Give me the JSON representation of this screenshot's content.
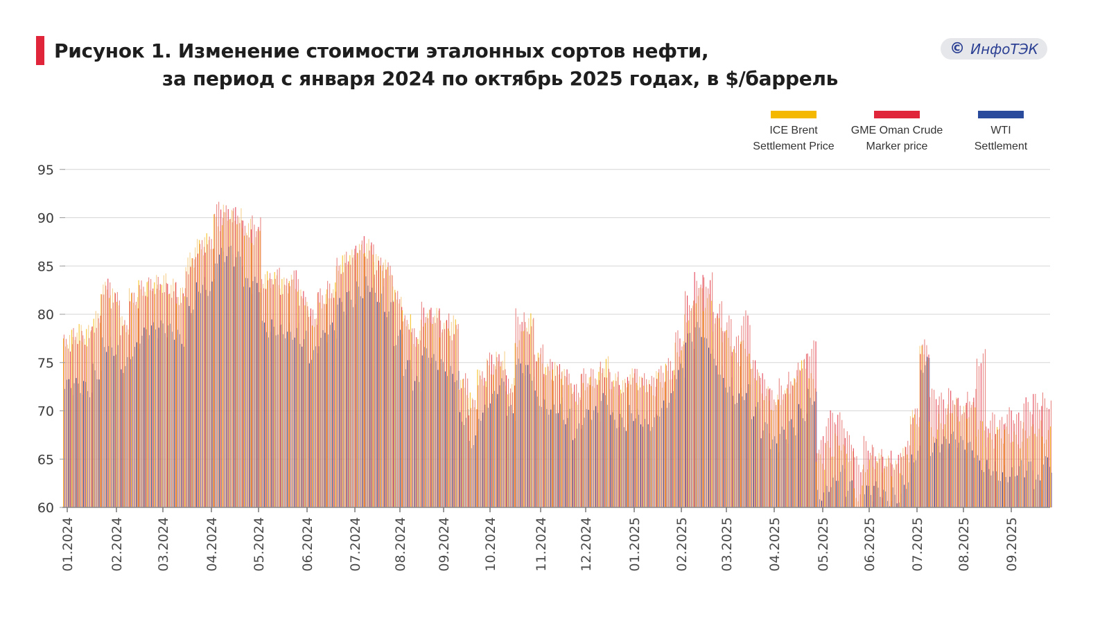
{
  "header": {
    "title_line1": "Рисунок 1. Изменение стоимости эталонных сортов нефти,",
    "title_line2": "за период с января 2024 по октябрь 2025 годах, в $/баррель",
    "badge_symbol": "©",
    "badge_text": "ИнфоТЭК",
    "accent_color": "#e0243a",
    "badge_text_color": "#2a3f93"
  },
  "chart_data": {
    "type": "bar",
    "title": "Рисунок 1. Изменение стоимости эталонных сортов нефти, за период с января 2024 по октябрь 2025 годах, в $/баррель",
    "xlabel": "",
    "ylabel": "$/баррель",
    "ylim": [
      60,
      95
    ],
    "yticks": [
      "95",
      "90",
      "85",
      "80",
      "75",
      "70",
      "65",
      "60"
    ],
    "ytick_values": [
      95,
      90,
      85,
      80,
      75,
      70,
      65,
      60
    ],
    "grid": true,
    "legend_position": "top-right",
    "xticks": [
      "01.2024",
      "02.2024",
      "03.2024",
      "04.2024",
      "05.2024",
      "06.2024",
      "07.2024",
      "08.2024",
      "09.2024",
      "10.2024",
      "11.2024",
      "12.2024",
      "01.2025",
      "02.2025",
      "03.2025",
      "04.2025",
      "05.2025",
      "06.2025",
      "07.2025",
      "08.2025",
      "09.2025"
    ],
    "series": [
      {
        "name": "ICE Brent Settlement Price",
        "legend_line1": "ICE Brent",
        "legend_line2": "Settlement Price",
        "color": "#f5b800",
        "values": [
          77.5,
          78.2,
          78.0,
          79.5,
          82.5,
          81.8,
          79.0,
          81.8,
          82.8,
          83.2,
          83.4,
          82.8,
          82.0,
          85.5,
          87.0,
          87.5,
          89.5,
          90.5,
          90.2,
          89.0,
          88.0,
          83.6,
          83.5,
          83.0,
          83.2,
          81.8,
          79.5,
          81.5,
          82.4,
          85.4,
          85.8,
          86.5,
          86.9,
          85.4,
          84.8,
          82.0,
          79.6,
          77.5,
          79.6,
          79.8,
          78.5,
          79.0,
          72.5,
          71.0,
          73.5,
          74.5,
          75.5,
          72.5,
          77.5,
          79.2,
          75.2,
          74.0,
          74.2,
          73.5,
          71.5,
          73.0,
          73.2,
          74.8,
          73.0,
          72.5,
          73.5,
          72.8,
          72.3,
          73.3,
          74.0,
          76.5,
          80.0,
          82.0,
          81.2,
          79.0,
          77.5,
          75.5,
          76.5,
          74.0,
          72.0,
          70.8,
          71.5,
          72.5,
          74.5,
          73.0,
          64.8,
          66.0,
          66.8,
          65.5,
          61.5,
          64.5,
          64.8,
          64.5,
          64.0,
          65.5,
          69.2,
          76.0,
          68.0,
          69.0,
          70.5,
          69.8,
          70.0,
          68.2,
          66.8,
          67.5,
          67.5,
          67.0,
          68.0,
          68.2,
          67.5
        ]
      },
      {
        "name": "GME Oman Crude Marker price",
        "legend_line1": "GME Oman Crude",
        "legend_line2": "Marker price",
        "color": "#e0243a",
        "values": [
          77.0,
          77.8,
          77.5,
          79.0,
          82.8,
          81.5,
          78.5,
          81.5,
          82.6,
          83.0,
          83.0,
          82.6,
          81.8,
          85.0,
          86.8,
          87.2,
          90.8,
          90.4,
          90.3,
          88.8,
          89.5,
          83.4,
          84.0,
          82.8,
          83.8,
          81.5,
          79.8,
          81.8,
          82.6,
          85.0,
          86.0,
          87.2,
          86.6,
          85.0,
          84.5,
          81.6,
          79.0,
          77.8,
          80.4,
          80.0,
          79.2,
          78.2,
          73.0,
          70.4,
          73.2,
          75.2,
          75.0,
          72.8,
          79.8,
          78.8,
          76.0,
          74.5,
          74.0,
          73.4,
          72.0,
          73.5,
          73.6,
          74.2,
          73.4,
          72.6,
          73.6,
          73.0,
          72.8,
          73.8,
          74.6,
          77.5,
          81.5,
          83.6,
          83.5,
          80.5,
          79.0,
          77.0,
          79.5,
          74.5,
          73.0,
          71.5,
          72.5,
          73.5,
          75.0,
          76.5,
          66.5,
          69.2,
          69.0,
          67.0,
          64.5,
          66.5,
          65.5,
          65.0,
          64.8,
          66.0,
          69.5,
          76.5,
          71.5,
          71.0,
          71.5,
          70.5,
          71.5,
          75.5,
          69.0,
          68.5,
          69.5,
          69.0,
          70.5,
          71.0,
          71.0
        ]
      },
      {
        "name": "WTI Settlement",
        "legend_line1": "WTI",
        "legend_line2": "Settlement",
        "color": "#2a4a9b",
        "values": [
          72.5,
          72.5,
          72.3,
          74.0,
          77.0,
          76.5,
          74.8,
          76.2,
          77.8,
          78.3,
          78.5,
          78.2,
          77.5,
          81.0,
          83.0,
          82.8,
          86.0,
          86.3,
          85.6,
          83.0,
          83.0,
          78.5,
          78.6,
          78.4,
          78.2,
          77.5,
          75.8,
          77.5,
          78.3,
          80.8,
          81.6,
          82.5,
          83.2,
          82.0,
          80.6,
          77.5,
          74.5,
          72.7,
          75.8,
          75.0,
          74.5,
          73.8,
          69.4,
          67.0,
          69.8,
          71.2,
          72.5,
          69.8,
          74.5,
          74.0,
          71.2,
          70.5,
          70.5,
          69.5,
          67.8,
          69.4,
          69.6,
          71.0,
          69.0,
          68.8,
          69.8,
          69.2,
          68.8,
          70.2,
          71.2,
          74.0,
          77.3,
          78.3,
          76.8,
          74.5,
          72.8,
          71.5,
          72.0,
          70.0,
          68.0,
          66.5,
          67.5,
          68.3,
          69.8,
          71.5,
          61.5,
          62.5,
          63.5,
          62.0,
          59.0,
          61.5,
          61.8,
          61.0,
          61.2,
          62.8,
          65.5,
          74.8,
          66.2,
          66.5,
          67.0,
          66.5,
          66.0,
          64.5,
          64.2,
          63.5,
          63.5,
          64.0,
          64.0,
          62.5,
          64.5
        ]
      }
    ]
  }
}
